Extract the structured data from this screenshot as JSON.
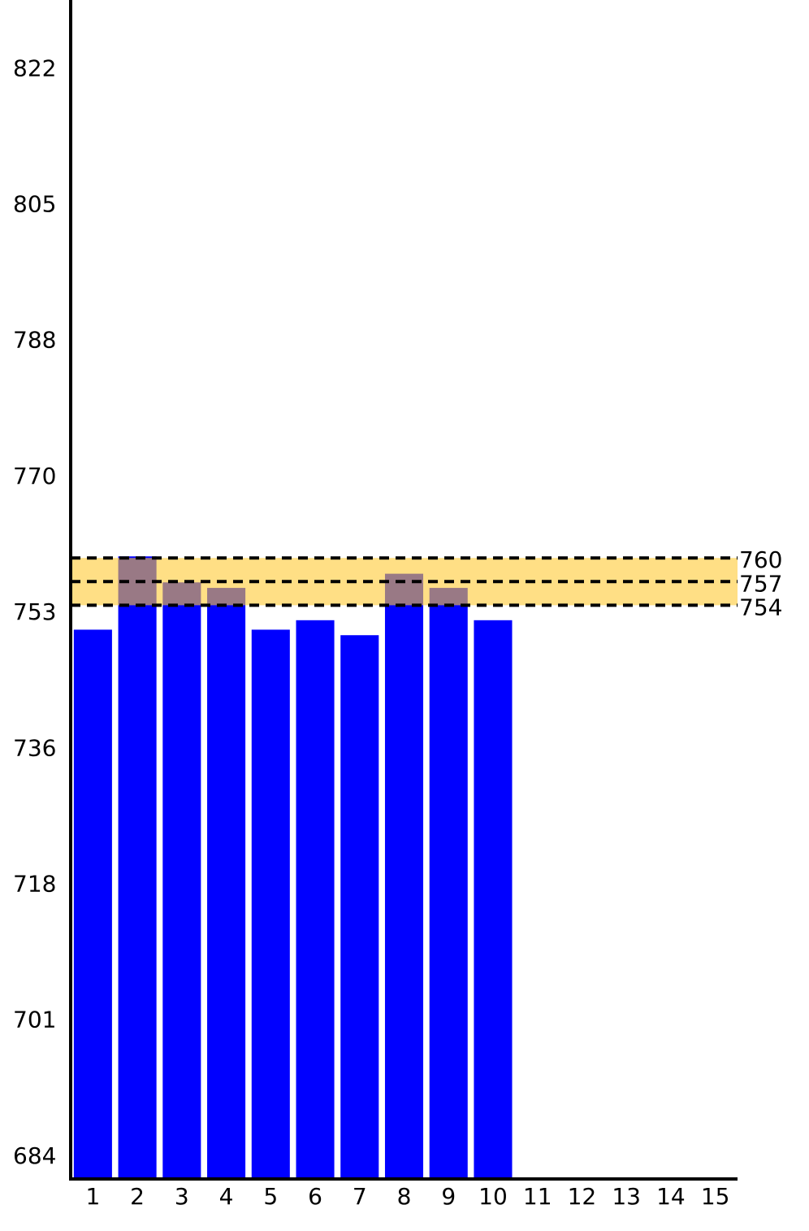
{
  "chart_data": {
    "type": "bar",
    "categories": [
      "1",
      "2",
      "3",
      "4",
      "5",
      "6",
      "7",
      "8",
      "9",
      "10",
      "11",
      "12",
      "13",
      "14",
      "15"
    ],
    "values": [
      750.9,
      760.2,
      756.9,
      756.2,
      750.9,
      752.1,
      750.2,
      758.0,
      756.2,
      752.1,
      null,
      null,
      null,
      null,
      null
    ],
    "color": "#0000ff",
    "ylim": [
      681.2,
      830.8
    ],
    "yticks": [
      684,
      {
        "value": 701.25,
        "label": "701"
      },
      {
        "value": 718.5,
        "label": "718"
      },
      {
        "value": 735.75,
        "label": "736"
      },
      753,
      {
        "value": 770.25,
        "label": "770"
      },
      {
        "value": 787.5,
        "label": "788"
      },
      {
        "value": 804.75,
        "label": "805"
      },
      822
    ],
    "reference_lines": [
      760,
      757,
      754
    ],
    "band_color": "#ffc933"
  }
}
